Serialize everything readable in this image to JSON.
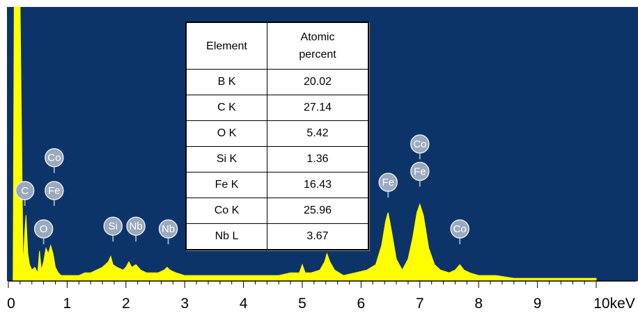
{
  "colors": {
    "background": "#0d3468",
    "spectrum": "#ffff00",
    "label_fill": "#9aa9bd",
    "axis": "#000000"
  },
  "table": {
    "header": {
      "element": "Element",
      "atomic_percent": "Atomic percent"
    },
    "rows": [
      {
        "element": "B K",
        "value": "20.02"
      },
      {
        "element": "C K",
        "value": "27.14"
      },
      {
        "element": "O K",
        "value": "5.42"
      },
      {
        "element": "Si K",
        "value": "1.36"
      },
      {
        "element": "Fe K",
        "value": "16.43"
      },
      {
        "element": "Co K",
        "value": "25.96"
      },
      {
        "element": "Nb L",
        "value": "3.67"
      }
    ]
  },
  "chart_data": {
    "type": "area",
    "xlabel": "",
    "ylabel": "",
    "xlim": [
      0,
      10
    ],
    "ylim": [
      0,
      100
    ],
    "x_ticks": [
      {
        "value": 0,
        "label": "0"
      },
      {
        "value": 1,
        "label": "1"
      },
      {
        "value": 2,
        "label": "2"
      },
      {
        "value": 3,
        "label": "3"
      },
      {
        "value": 4,
        "label": "4"
      },
      {
        "value": 5,
        "label": "5"
      },
      {
        "value": 6,
        "label": "6"
      },
      {
        "value": 7,
        "label": "7"
      },
      {
        "value": 8,
        "label": "8"
      },
      {
        "value": 9,
        "label": "9"
      },
      {
        "value": 10,
        "label": "10keV"
      }
    ],
    "grid": false,
    "series": [
      {
        "x": [
          0.0,
          0.08,
          0.1,
          0.12,
          0.16,
          0.2,
          0.25,
          0.28,
          0.3,
          0.33,
          0.36,
          0.4,
          0.45,
          0.5,
          0.53,
          0.56,
          0.6,
          0.64,
          0.68,
          0.72,
          0.76,
          0.8,
          0.85,
          0.9,
          0.95,
          1.0,
          1.1,
          1.2,
          1.3,
          1.4,
          1.5,
          1.6,
          1.7,
          1.74,
          1.78,
          1.85,
          1.95,
          2.0,
          2.05,
          2.1,
          2.17,
          2.25,
          2.35,
          2.45,
          2.55,
          2.65,
          2.7,
          2.75,
          2.85,
          3.0,
          3.2,
          3.4,
          3.6,
          3.8,
          4.0,
          4.2,
          4.4,
          4.6,
          4.8,
          4.95,
          5.0,
          5.05,
          5.15,
          5.3,
          5.38,
          5.42,
          5.47,
          5.55,
          5.7,
          5.9,
          6.1,
          6.25,
          6.35,
          6.42,
          6.46,
          6.52,
          6.6,
          6.7,
          6.8,
          6.88,
          6.95,
          7.0,
          7.06,
          7.15,
          7.25,
          7.35,
          7.5,
          7.6,
          7.68,
          7.75,
          7.85,
          8.0,
          8.3,
          8.6,
          9.0,
          9.4,
          9.8,
          10.0
        ],
        "y": [
          0,
          0,
          100,
          100,
          100,
          100,
          5,
          18,
          24,
          10,
          6,
          4,
          5,
          3,
          11,
          4,
          7,
          12,
          10,
          13,
          10,
          5,
          3,
          2,
          2,
          2,
          2,
          2,
          3,
          3,
          4,
          5,
          7,
          9,
          6,
          5,
          4,
          5,
          7,
          5,
          6,
          4,
          3,
          3,
          3,
          4,
          5,
          4,
          3,
          2,
          2,
          2,
          2,
          2,
          2,
          2,
          2,
          2,
          3,
          3,
          6,
          3,
          3,
          4,
          7,
          10,
          7,
          4,
          2,
          3,
          4,
          6,
          13,
          22,
          25,
          18,
          8,
          4,
          8,
          16,
          25,
          28,
          24,
          12,
          6,
          4,
          3,
          4,
          6,
          4,
          3,
          2,
          2,
          1,
          1,
          1,
          1,
          1
        ]
      }
    ],
    "peak_labels": [
      {
        "text": "C",
        "x": 0.28,
        "y": 33
      },
      {
        "text": "Co",
        "x": 0.78,
        "y": 45
      },
      {
        "text": "Fe",
        "x": 0.78,
        "y": 33
      },
      {
        "text": "O",
        "x": 0.6,
        "y": 19
      },
      {
        "text": "Si",
        "x": 1.78,
        "y": 20
      },
      {
        "text": "Nb",
        "x": 2.17,
        "y": 20
      },
      {
        "text": "Nb",
        "x": 2.72,
        "y": 19
      },
      {
        "text": "Fe",
        "x": 6.46,
        "y": 36
      },
      {
        "text": "Co",
        "x": 7.0,
        "y": 50
      },
      {
        "text": "Fe",
        "x": 7.0,
        "y": 40
      },
      {
        "text": "Co",
        "x": 7.68,
        "y": 19
      }
    ]
  }
}
